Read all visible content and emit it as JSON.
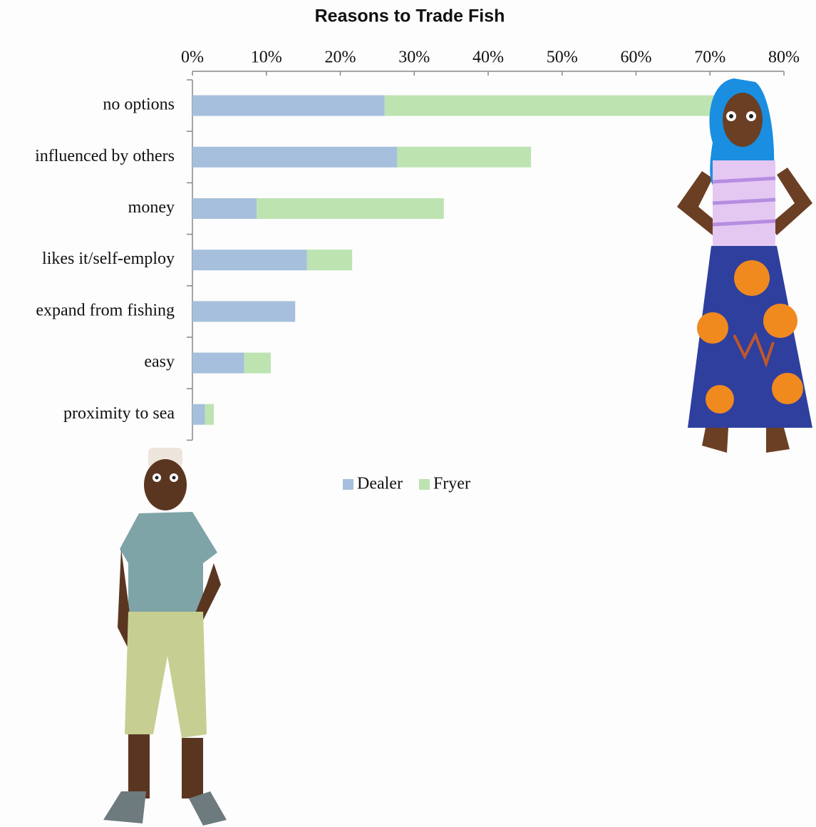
{
  "chart_data": {
    "type": "stacked-barh",
    "title": "Reasons to Trade Fish",
    "categories": [
      "no options",
      "influenced by others",
      "money",
      "likes it/self-employ",
      "expand from fishing",
      "easy",
      "proximity to sea"
    ],
    "series": [
      {
        "name": "Dealer",
        "color": "#a6bfdd",
        "values": [
          26,
          27.7,
          8.7,
          15.5,
          13.9,
          7.0,
          1.7
        ]
      },
      {
        "name": "Fryer",
        "color": "#bde3b1",
        "values": [
          46,
          18.1,
          25.3,
          6.1,
          0,
          3.6,
          1.2
        ]
      }
    ],
    "xlim": [
      0,
      80
    ],
    "xticks": [
      {
        "value": 0,
        "label": "0%"
      },
      {
        "value": 10,
        "label": "10%"
      },
      {
        "value": 20,
        "label": "20%"
      },
      {
        "value": 30,
        "label": "30%"
      },
      {
        "value": 40,
        "label": "40%"
      },
      {
        "value": 50,
        "label": "50%"
      },
      {
        "value": 60,
        "label": "60%"
      },
      {
        "value": 70,
        "label": "70%"
      },
      {
        "value": 80,
        "label": "80%"
      }
    ],
    "legend": "bottom"
  }
}
